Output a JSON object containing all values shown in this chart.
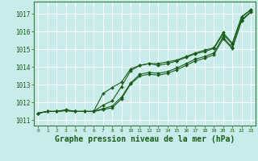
{
  "bg_color": "#c8ece9",
  "grid_color": "#b0d8d4",
  "line_color": "#1a5c1a",
  "marker_color": "#1a5c1a",
  "xlabel": "Graphe pression niveau de la mer (hPa)",
  "xlabel_fontsize": 7,
  "xlim": [
    -0.5,
    23.5
  ],
  "ylim": [
    1010.7,
    1017.7
  ],
  "yticks": [
    1011,
    1012,
    1013,
    1014,
    1015,
    1016,
    1017
  ],
  "xticks": [
    0,
    1,
    2,
    3,
    4,
    5,
    6,
    7,
    8,
    9,
    10,
    11,
    12,
    13,
    14,
    15,
    16,
    17,
    18,
    19,
    20,
    21,
    22,
    23
  ],
  "series": [
    [
      1011.4,
      1011.5,
      1011.5,
      1011.55,
      1011.5,
      1011.5,
      1011.5,
      1011.6,
      1011.7,
      1012.2,
      1013.05,
      1013.5,
      1013.6,
      1013.55,
      1013.65,
      1013.85,
      1014.1,
      1014.35,
      1014.5,
      1014.7,
      1015.6,
      1015.05,
      1016.6,
      1017.1
    ],
    [
      1011.4,
      1011.5,
      1011.5,
      1011.55,
      1011.5,
      1011.5,
      1011.5,
      1011.85,
      1012.1,
      1012.9,
      1013.8,
      1014.1,
      1014.2,
      1014.1,
      1014.2,
      1014.35,
      1014.55,
      1014.75,
      1014.88,
      1015.05,
      1015.85,
      1015.3,
      1016.8,
      1017.25
    ],
    [
      1011.4,
      1011.5,
      1011.5,
      1011.6,
      1011.5,
      1011.5,
      1011.5,
      1012.5,
      1012.85,
      1013.15,
      1013.9,
      1014.1,
      1014.2,
      1014.2,
      1014.3,
      1014.4,
      1014.6,
      1014.8,
      1014.95,
      1015.1,
      1015.95,
      1015.35,
      1016.85,
      1017.25
    ],
    [
      1011.4,
      1011.5,
      1011.5,
      1011.55,
      1011.5,
      1011.5,
      1011.5,
      1011.65,
      1011.8,
      1012.3,
      1013.1,
      1013.6,
      1013.7,
      1013.65,
      1013.75,
      1013.95,
      1014.2,
      1014.45,
      1014.6,
      1014.8,
      1015.7,
      1015.1,
      1016.65,
      1017.15
    ]
  ]
}
